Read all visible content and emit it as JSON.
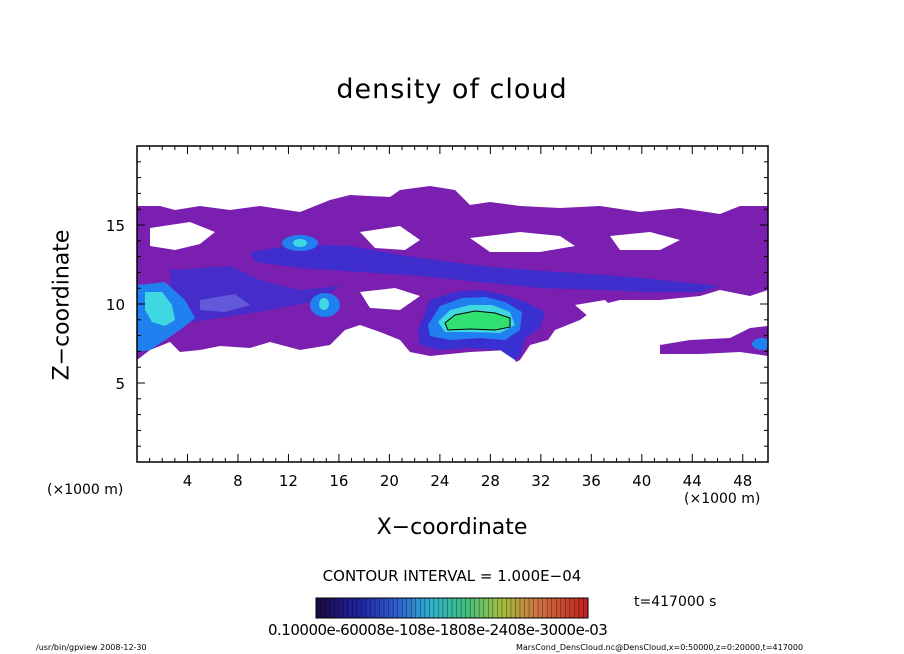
{
  "chart_data": {
    "type": "heatmap",
    "title": "density of cloud",
    "xlabel": "X−coordinate",
    "ylabel": "Z−coordinate",
    "x_unit": "(×1000 m)",
    "x_unit_right": "(×1000 m)",
    "xlim": [
      0,
      50
    ],
    "ylim": [
      0,
      20
    ],
    "x_ticks": [
      4,
      8,
      12,
      16,
      20,
      24,
      28,
      32,
      36,
      40,
      44,
      48
    ],
    "y_ticks": [
      5,
      10,
      15
    ],
    "contour_interval": "CONTOUR INTERVAL = 1.000E−04",
    "time": "t=417000 s",
    "colorbar_labels_text": "0.10000e-60008e-108e-1808e-2408e-3000e-03",
    "colorbar_range": [
      0,
      0.001
    ],
    "colors": {
      "background_level": "#7a1fb0",
      "level_2": "#3a2fd0",
      "level_3": "#2080f0",
      "level_4": "#40d8e0",
      "peak": "#30e070"
    },
    "regions": [
      {
        "name": "broad layer",
        "x": [
          0,
          50
        ],
        "z": [
          6.5,
          17.5
        ],
        "value": 0.0001
      },
      {
        "name": "upper band",
        "x": [
          10,
          46
        ],
        "z": [
          11.5,
          14.2
        ],
        "value": 0.0002
      },
      {
        "name": "left cell",
        "x": [
          0,
          3
        ],
        "z": [
          7.5,
          11
        ],
        "value": 0.0006
      },
      {
        "name": "cell near x=12",
        "x": [
          12,
          13
        ],
        "z": [
          13.5,
          15
        ],
        "value": 0.0004
      },
      {
        "name": "cell near x=15",
        "x": [
          14,
          16
        ],
        "z": [
          9.5,
          10.5
        ],
        "value": 0.0004
      },
      {
        "name": "main cell",
        "x": [
          23,
          31
        ],
        "z": [
          7.5,
          10.5
        ],
        "value": 0.0009
      },
      {
        "name": "right patch",
        "x": [
          41,
          50
        ],
        "z": [
          7.3,
          8.5
        ],
        "value": 0.0002
      }
    ]
  },
  "footer": {
    "left": "/usr/bin/gpview   2008-12-30",
    "right": "MarsCond_DensCloud.nc@DensCloud,x=0:50000,z=0:20000,t=417000"
  }
}
